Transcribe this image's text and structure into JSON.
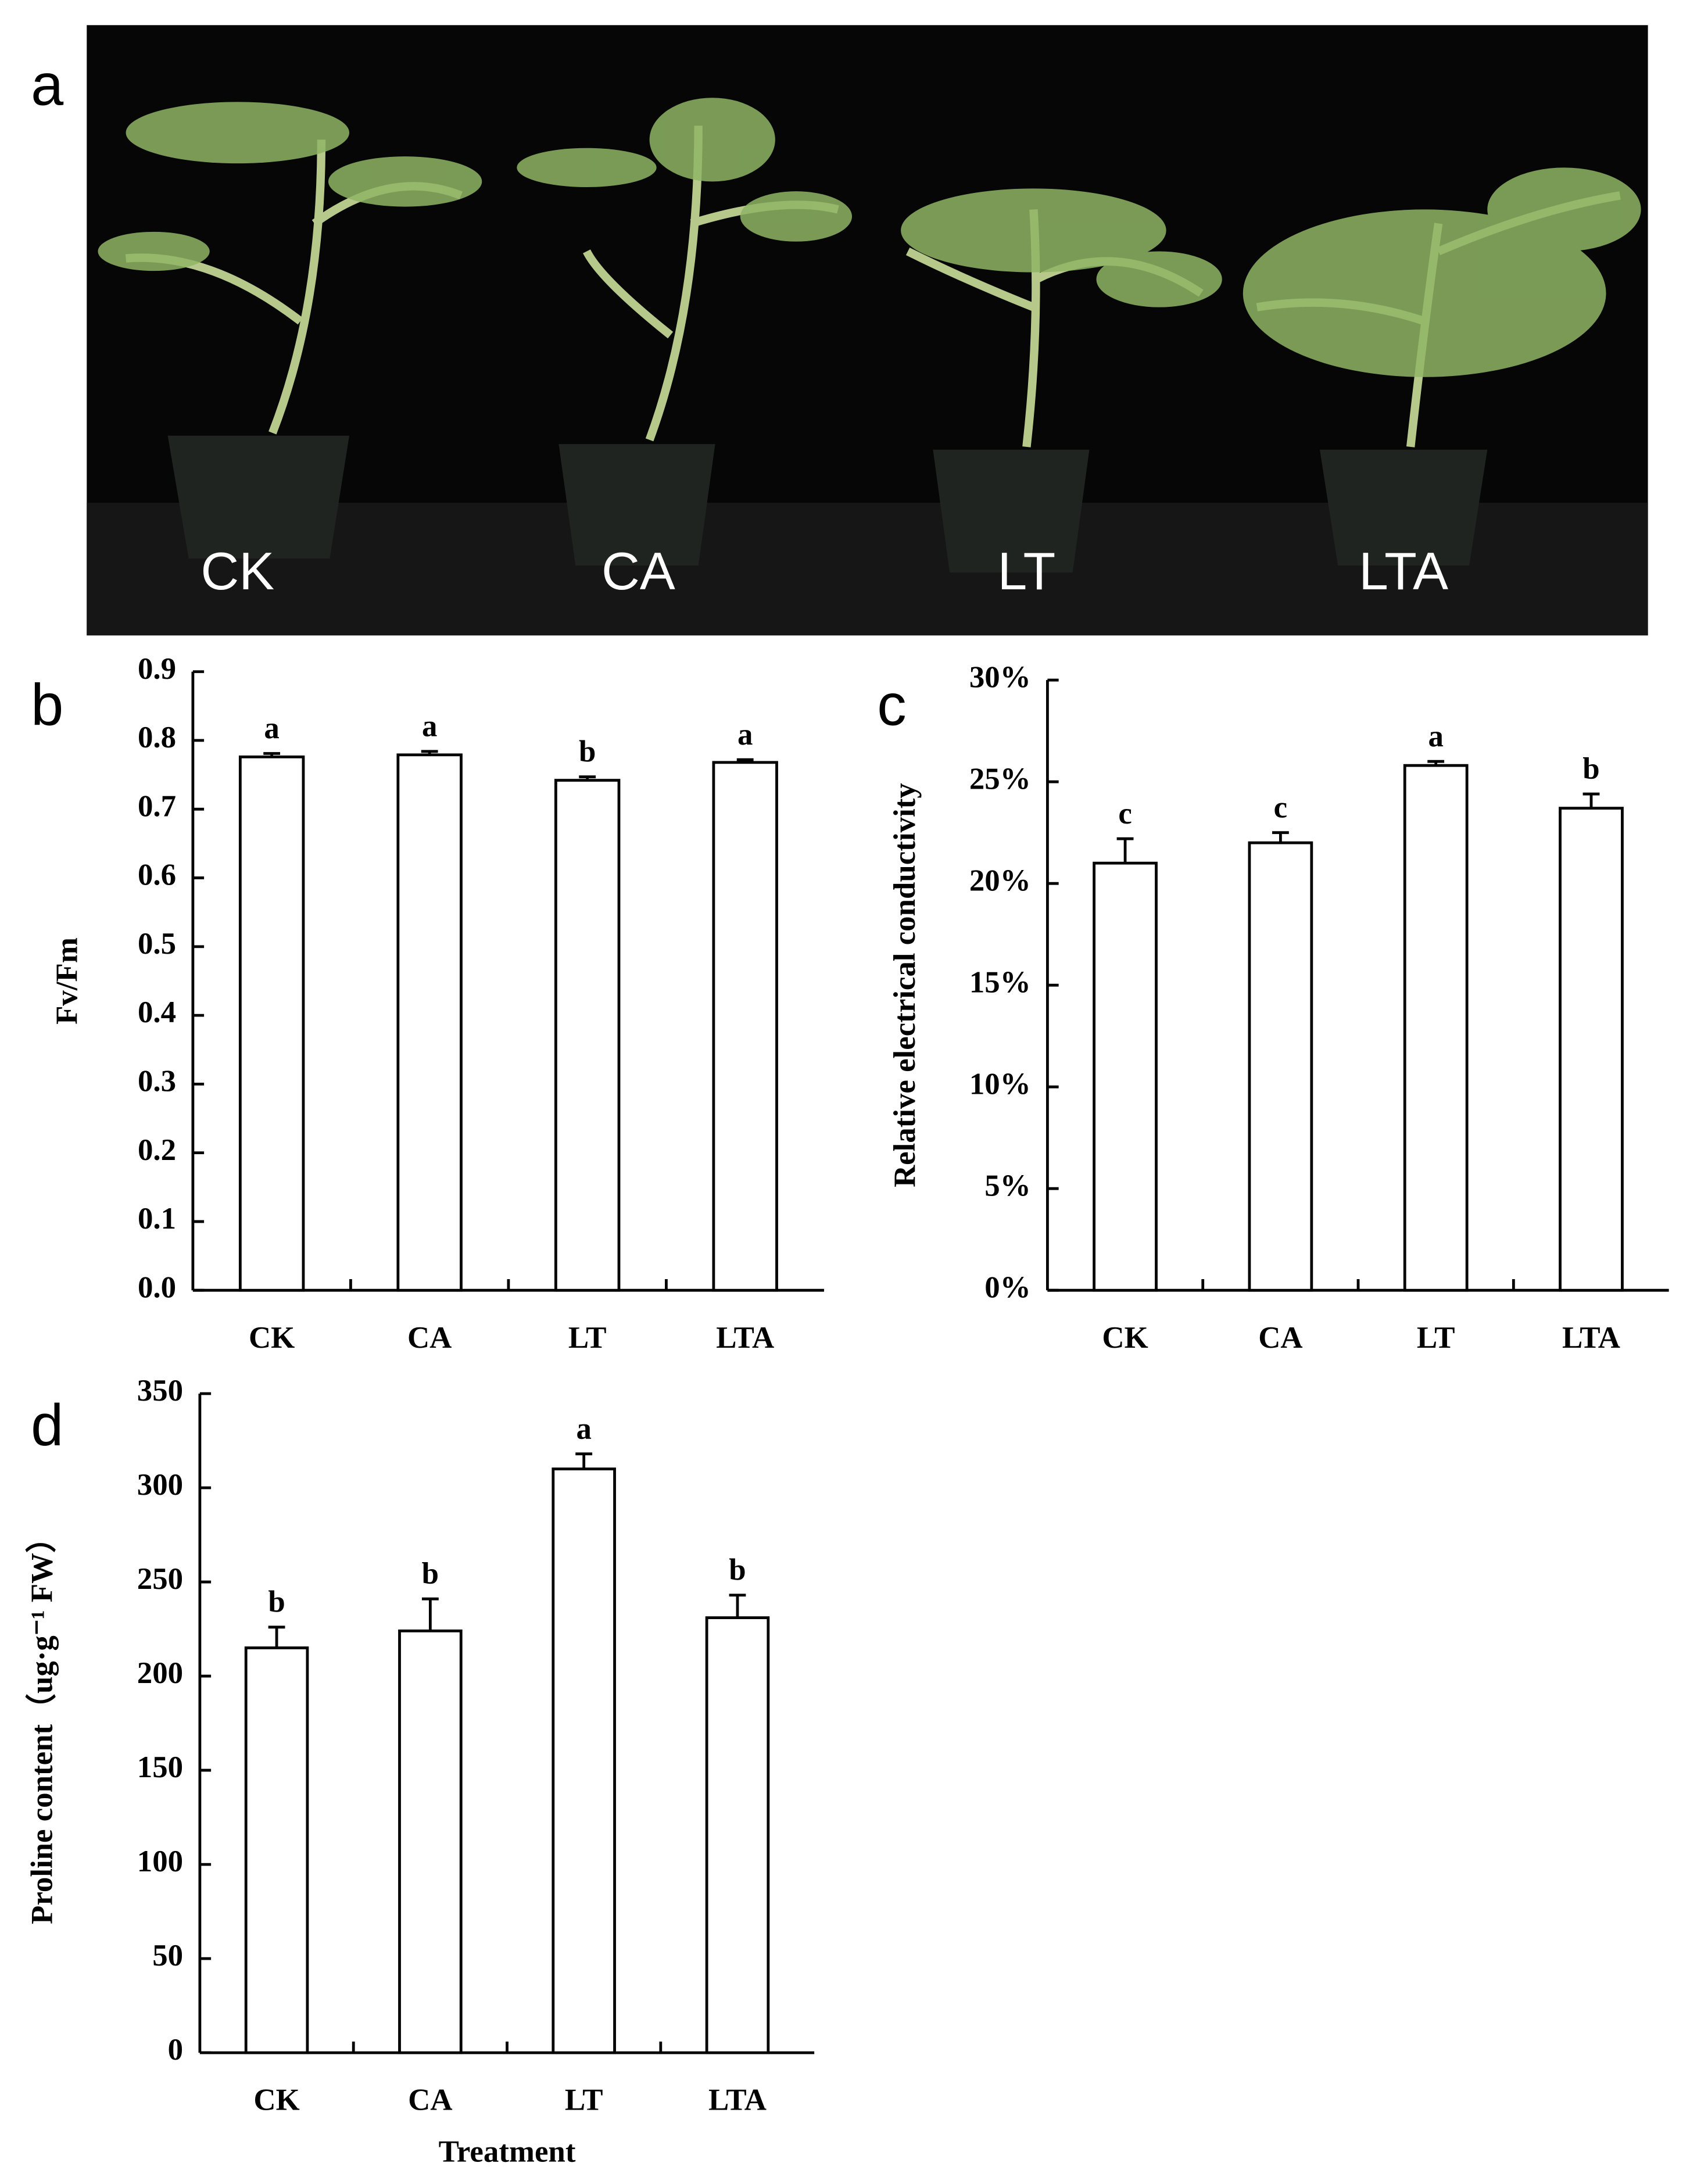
{
  "photo": {
    "panel": "a",
    "labels": [
      "CK",
      "CA",
      "LT",
      "LTA"
    ]
  },
  "chart_data": [
    {
      "type": "bar",
      "panel": "b",
      "ylabel": "Fv/Fm",
      "categories": [
        "CK",
        "CA",
        "LT",
        "LTA"
      ],
      "values": [
        0.776,
        0.779,
        0.742,
        0.768
      ],
      "errors": [
        0.005,
        0.005,
        0.005,
        0.004
      ],
      "letters": [
        "a",
        "a",
        "b",
        "a"
      ],
      "color": "#ffffff",
      "ylim": [
        0,
        0.9
      ],
      "yticks": [
        {
          "value": 0,
          "label": "0.0"
        },
        0.1,
        0.2,
        0.3,
        0.4,
        0.5,
        0.6,
        0.7,
        0.8,
        0.9
      ]
    },
    {
      "type": "bar",
      "panel": "c",
      "ylabel": "Relative electrical conductivity",
      "categories": [
        "CK",
        "CA",
        "LT",
        "LTA"
      ],
      "values": [
        21,
        22,
        25.8,
        23.7
      ],
      "errors": [
        1.2,
        0.5,
        0.2,
        0.7
      ],
      "letters": [
        "c",
        "c",
        "a",
        "b"
      ],
      "color": "#ffffff",
      "ylim": [
        0,
        30
      ],
      "yticks": [
        {
          "value": 0,
          "label": "0%"
        },
        {
          "value": 5,
          "label": "5%"
        },
        {
          "value": 10,
          "label": "10%"
        },
        {
          "value": 15,
          "label": "15%"
        },
        {
          "value": 20,
          "label": "20%"
        },
        {
          "value": 25,
          "label": "25%"
        },
        {
          "value": 30,
          "label": "30%"
        }
      ]
    },
    {
      "type": "bar",
      "panel": "d",
      "ylabel": "Proline content（ug·g⁻¹ FW）",
      "xlabel": "Treatment",
      "categories": [
        "CK",
        "CA",
        "LT",
        "LTA"
      ],
      "values": [
        215,
        224,
        310,
        231
      ],
      "errors": [
        11,
        17,
        8,
        12
      ],
      "letters": [
        "b",
        "b",
        "a",
        "b"
      ],
      "color": "#ffffff",
      "ylim": [
        0,
        350
      ],
      "yticks": [
        0,
        50,
        100,
        150,
        200,
        250,
        300,
        350
      ]
    }
  ]
}
